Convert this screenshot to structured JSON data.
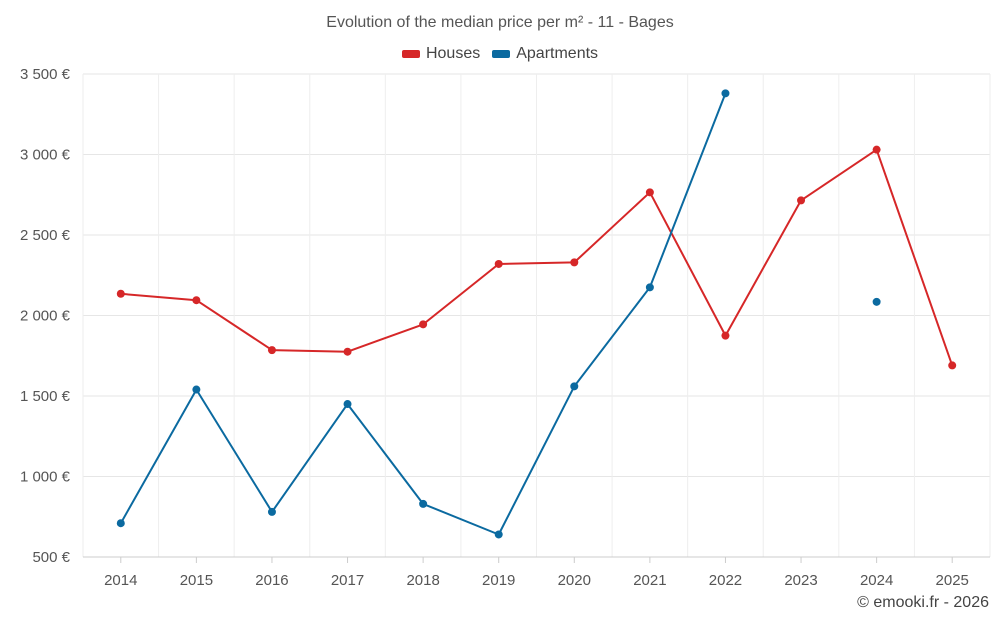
{
  "chart_data": {
    "type": "line",
    "title": "Evolution of the median price per m² - 11 - Bages",
    "categories": [
      "2014",
      "2015",
      "2016",
      "2017",
      "2018",
      "2019",
      "2020",
      "2021",
      "2022",
      "2023",
      "2024",
      "2025"
    ],
    "series": [
      {
        "name": "Houses",
        "color": "#d62728",
        "values": [
          2135,
          2095,
          1785,
          1775,
          1945,
          2320,
          2330,
          2765,
          1875,
          2715,
          3030,
          1690
        ]
      },
      {
        "name": "Apartments",
        "color": "#0b6aa0",
        "values": [
          710,
          1540,
          780,
          1450,
          830,
          640,
          1560,
          2175,
          3380,
          null,
          2085,
          null
        ]
      }
    ],
    "y_ticks": [
      "500 €",
      "1 000 €",
      "1 500 €",
      "2 000 €",
      "2 500 €",
      "3 000 €",
      "3 500 €"
    ],
    "y_tick_values": [
      500,
      1000,
      1500,
      2000,
      2500,
      3000,
      3500
    ],
    "ylim": [
      500,
      3500
    ],
    "grid": true,
    "legend_position": "top-center",
    "xlabel": "",
    "ylabel": ""
  },
  "footer": {
    "credit": "© emooki.fr - 2026"
  }
}
